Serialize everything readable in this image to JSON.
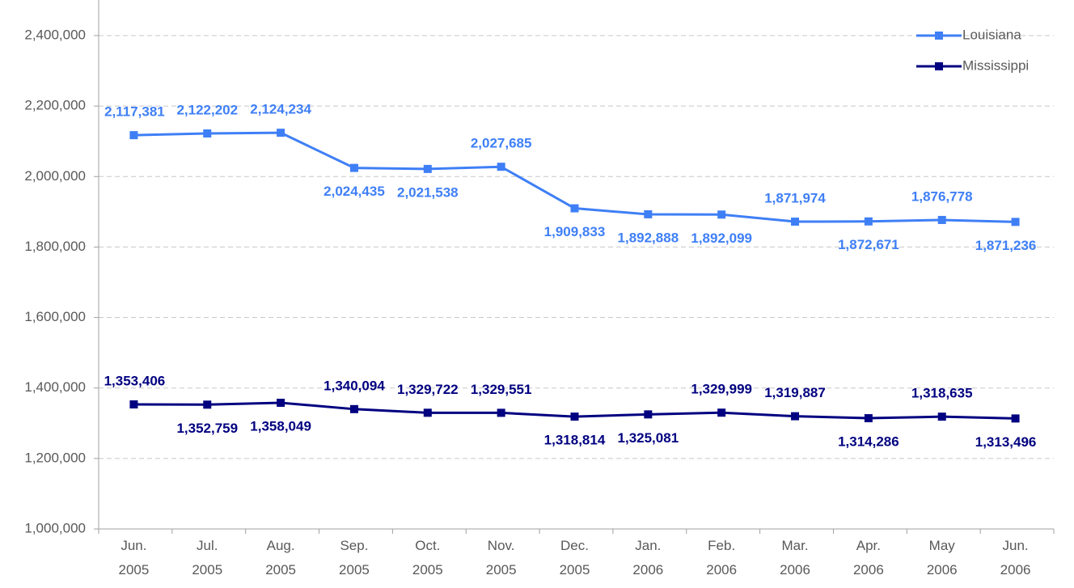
{
  "chart_data": {
    "type": "line",
    "categories": [
      "Jun. 2005",
      "Jul. 2005",
      "Aug. 2005",
      "Sep. 2005",
      "Oct. 2005",
      "Nov. 2005",
      "Dec. 2005",
      "Jan. 2006",
      "Feb. 2006",
      "Mar. 2006",
      "Apr. 2006",
      "May 2006",
      "Jun. 2006"
    ],
    "series": [
      {
        "name": "Louisiana",
        "color": "#3f7ff6",
        "values": [
          2117381,
          2122202,
          2124234,
          2024435,
          2021538,
          2027685,
          1909833,
          1892888,
          1892099,
          1871974,
          1872671,
          1876778,
          1871236
        ],
        "value_labels": [
          "2,117,381",
          "2,122,202",
          "2,124,234",
          "2,024,435",
          "2,021,538",
          "2,027,685",
          "1,909,833",
          "1,892,888",
          "1,892,099",
          "1,871,974",
          "1,872,671",
          "1,876,778",
          "1,871,236"
        ]
      },
      {
        "name": "Mississippi",
        "color": "#000080",
        "values": [
          1353406,
          1352759,
          1358049,
          1340094,
          1329722,
          1329551,
          1318814,
          1325081,
          1329999,
          1319887,
          1314286,
          1318635,
          1313496
        ],
        "value_labels": [
          "1,353,406",
          "1,352,759",
          "1,358,049",
          "1,340,094",
          "1,329,722",
          "1,329,551",
          "1,318,814",
          "1,325,081",
          "1,329,999",
          "1,319,887",
          "1,314,286",
          "1,318,635",
          "1,313,496"
        ]
      }
    ],
    "ylim": [
      1000000,
      2500000
    ],
    "yticks": [
      {
        "value": 1000000,
        "label": "1,000,000"
      },
      {
        "value": 1200000,
        "label": "1,200,000"
      },
      {
        "value": 1400000,
        "label": "1,400,000"
      },
      {
        "value": 1600000,
        "label": "1,600,000"
      },
      {
        "value": 1800000,
        "label": "1,800,000"
      },
      {
        "value": 2000000,
        "label": "2,000,000"
      },
      {
        "value": 2200000,
        "label": "2,200,000"
      },
      {
        "value": 2400000,
        "label": "2,400,000"
      }
    ],
    "grid": true,
    "legend": "top-right"
  }
}
